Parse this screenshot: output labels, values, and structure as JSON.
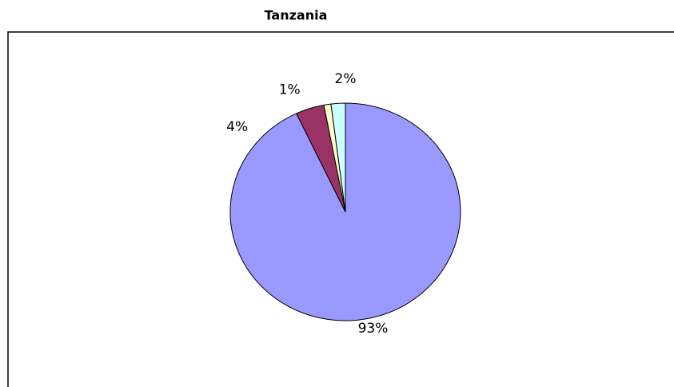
{
  "chart_data": {
    "type": "pie",
    "title": "Tanzania",
    "values": [
      93,
      4,
      1,
      2
    ],
    "value_labels": [
      "93%",
      "4%",
      "1%",
      "2%"
    ],
    "colors": [
      "#9999ff",
      "#993366",
      "#ffffcc",
      "#ccffff"
    ]
  }
}
